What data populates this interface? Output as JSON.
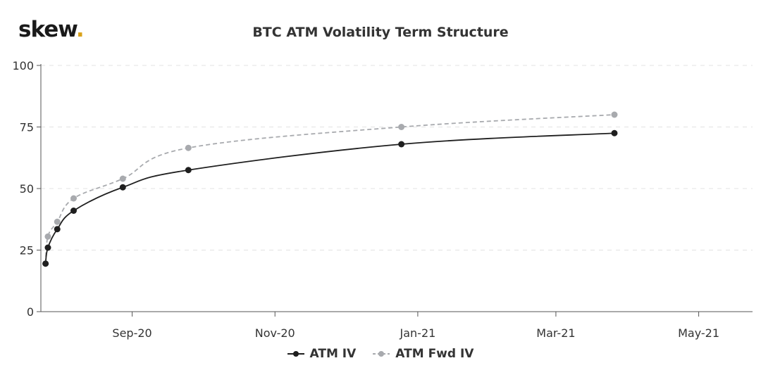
{
  "brand": {
    "name": "skew",
    "dot": ".",
    "dot_color": "#d9a21b"
  },
  "chart_data": {
    "type": "line",
    "title": "BTC ATM Volatility Term Structure",
    "xlabel": "",
    "ylabel": "",
    "xlim": [
      "2020-07-24",
      "2021-05-24"
    ],
    "ylim": [
      0,
      100
    ],
    "y_ticks": [
      0,
      25,
      50,
      75,
      100
    ],
    "x_ticks": [
      {
        "date": "2020-09-01",
        "label": "Sep-20"
      },
      {
        "date": "2020-11-01",
        "label": "Nov-20"
      },
      {
        "date": "2021-01-01",
        "label": "Jan-21"
      },
      {
        "date": "2021-03-01",
        "label": "Mar-21"
      },
      {
        "date": "2021-05-01",
        "label": "May-21"
      }
    ],
    "grid": "horizontal dashed",
    "legend_position": "bottom",
    "series": [
      {
        "name": "ATM IV",
        "color": "#1f1f1f",
        "dashed": false,
        "points": [
          {
            "x": "2020-07-26",
            "y": 19.5
          },
          {
            "x": "2020-07-27",
            "y": 26
          },
          {
            "x": "2020-07-31",
            "y": 33.5
          },
          {
            "x": "2020-08-07",
            "y": 41
          },
          {
            "x": "2020-08-28",
            "y": 50.5
          },
          {
            "x": "2020-09-25",
            "y": 57.5
          },
          {
            "x": "2020-12-25",
            "y": 68
          },
          {
            "x": "2021-03-26",
            "y": 72.5
          }
        ]
      },
      {
        "name": "ATM Fwd IV",
        "color": "#a8aaae",
        "dashed": true,
        "points": [
          {
            "x": "2020-07-26",
            "y": 19.5
          },
          {
            "x": "2020-07-27",
            "y": 30.5
          },
          {
            "x": "2020-07-31",
            "y": 36.5
          },
          {
            "x": "2020-08-07",
            "y": 46
          },
          {
            "x": "2020-08-28",
            "y": 54
          },
          {
            "x": "2020-09-25",
            "y": 66.5
          },
          {
            "x": "2020-12-25",
            "y": 75
          },
          {
            "x": "2021-03-26",
            "y": 80
          }
        ]
      }
    ]
  }
}
